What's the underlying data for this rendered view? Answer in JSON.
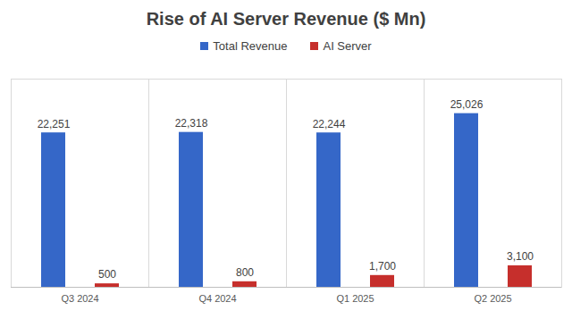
{
  "chart_data": {
    "type": "bar",
    "title": "Rise of AI Server Revenue ($ Mn)",
    "categories": [
      "Q3 2024",
      "Q4 2024",
      "Q1 2025",
      "Q2 2025"
    ],
    "series": [
      {
        "name": "Total Revenue",
        "color": "#3567c8",
        "values": [
          22251,
          22318,
          22244,
          25026
        ],
        "value_labels": [
          "22,251",
          "22,318",
          "22,244",
          "25,026"
        ]
      },
      {
        "name": "AI Server",
        "color": "#c62f2c",
        "values": [
          500,
          800,
          1700,
          3100
        ],
        "value_labels": [
          "500",
          "800",
          "1,700",
          "3,100"
        ]
      }
    ],
    "ylim": [
      0,
      30000
    ],
    "data_labels": true,
    "legend": "top",
    "tick_labels": "x",
    "grid": false
  }
}
